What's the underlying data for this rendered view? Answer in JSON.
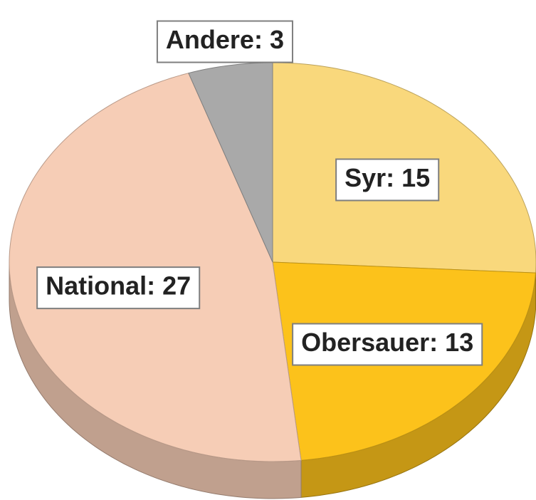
{
  "chart_data": {
    "type": "pie",
    "values": [
      15,
      13,
      27,
      3
    ],
    "value_labels": [
      "Syr: 15",
      "Obersauer: 13",
      "National: 27",
      "Andere: 3"
    ],
    "colors": [
      "#f9d87c",
      "#fcc21b",
      "#f6cdb6",
      "#a9a9a9"
    ]
  }
}
